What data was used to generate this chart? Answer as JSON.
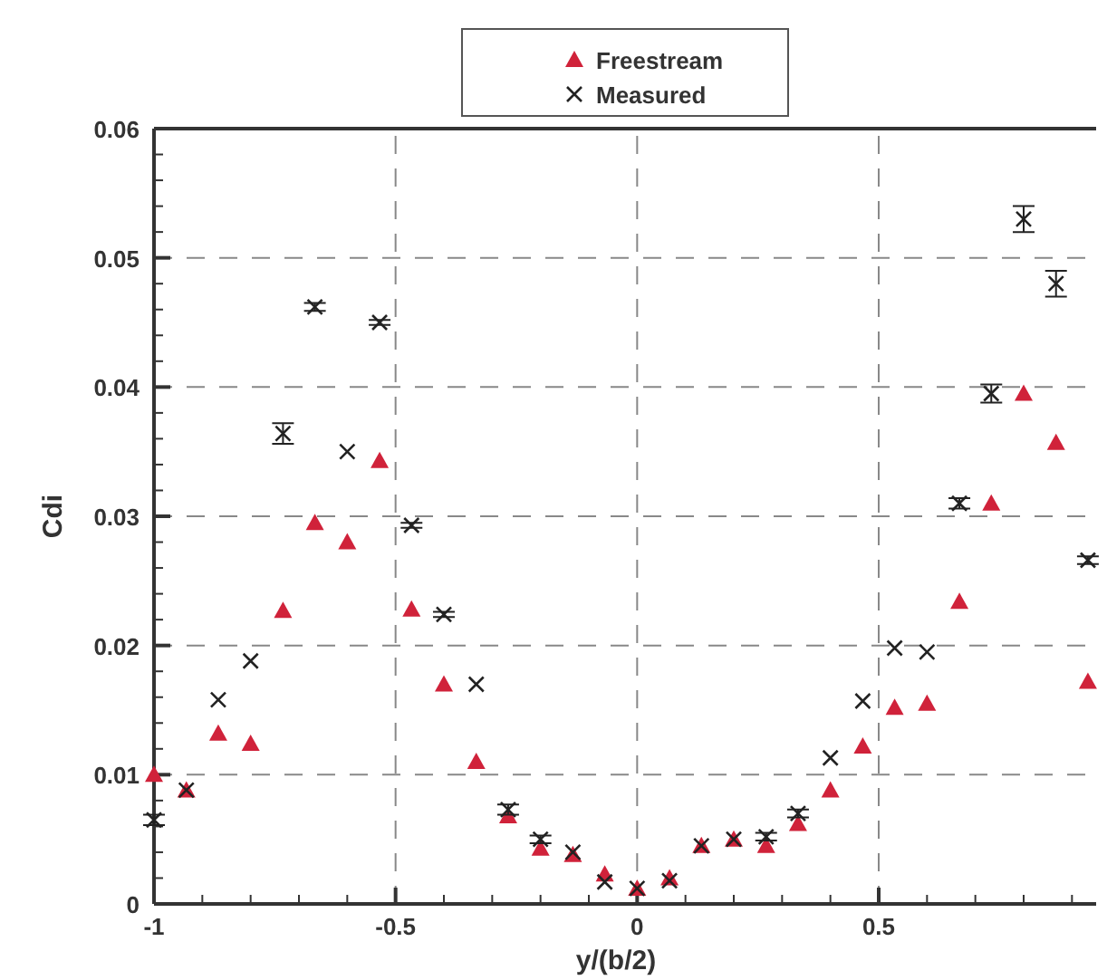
{
  "chart_data": {
    "type": "scatter",
    "xlabel": "y/(b/2)",
    "ylabel": "Cdi",
    "xlim": [
      -1,
      0.95
    ],
    "ylim": [
      0,
      0.06
    ],
    "xticks": [
      -1,
      {
        "value": -0.9,
        "label": null
      },
      {
        "value": -0.8,
        "label": null
      },
      {
        "value": -0.7,
        "label": null
      },
      {
        "value": -0.6,
        "label": null
      },
      -0.5,
      {
        "value": -0.4,
        "label": null
      },
      {
        "value": -0.3,
        "label": null
      },
      {
        "value": -0.2,
        "label": null
      },
      {
        "value": -0.1,
        "label": null
      },
      0,
      {
        "value": 0.1,
        "label": null
      },
      {
        "value": 0.2,
        "label": null
      },
      {
        "value": 0.3,
        "label": null
      },
      {
        "value": 0.4,
        "label": null
      },
      0.5,
      {
        "value": 0.6,
        "label": null
      },
      {
        "value": 0.7,
        "label": null
      },
      {
        "value": 0.8,
        "label": null
      },
      {
        "value": 0.9,
        "label": null
      }
    ],
    "yticks": [
      0,
      {
        "value": 0.002,
        "label": null
      },
      {
        "value": 0.004,
        "label": null
      },
      {
        "value": 0.006,
        "label": null
      },
      {
        "value": 0.008,
        "label": null
      },
      0.01,
      {
        "value": 0.012,
        "label": null
      },
      {
        "value": 0.014,
        "label": null
      },
      {
        "value": 0.016,
        "label": null
      },
      {
        "value": 0.018,
        "label": null
      },
      0.02,
      {
        "value": 0.022,
        "label": null
      },
      {
        "value": 0.024,
        "label": null
      },
      {
        "value": 0.026,
        "label": null
      },
      {
        "value": 0.028,
        "label": null
      },
      0.03,
      {
        "value": 0.032,
        "label": null
      },
      {
        "value": 0.034,
        "label": null
      },
      {
        "value": 0.036,
        "label": null
      },
      {
        "value": 0.038,
        "label": null
      },
      0.04,
      {
        "value": 0.042,
        "label": null
      },
      {
        "value": 0.044,
        "label": null
      },
      {
        "value": 0.046,
        "label": null
      },
      {
        "value": 0.048,
        "label": null
      },
      0.05,
      {
        "value": 0.052,
        "label": null
      },
      {
        "value": 0.054,
        "label": null
      },
      {
        "value": 0.056,
        "label": null
      },
      {
        "value": 0.058,
        "label": null
      },
      0.06
    ],
    "grid": true,
    "legend": "top",
    "line_style": "dashed",
    "x": [
      -1,
      -0.933,
      -0.867,
      -0.8,
      -0.733,
      -0.667,
      -0.6,
      -0.533,
      -0.467,
      -0.4,
      -0.333,
      -0.267,
      -0.2,
      -0.133,
      -0.067,
      0,
      0.067,
      0.133,
      0.2,
      0.267,
      0.333,
      0.4,
      0.467,
      0.533,
      0.6,
      0.667,
      0.733,
      0.8,
      0.867,
      0.933
    ],
    "series": [
      {
        "name": "Freestream",
        "color": "#d0223a",
        "marker": "triangle",
        "values": [
          0.01,
          0.0088,
          0.0132,
          0.0124,
          0.0227,
          0.0295,
          0.028,
          0.0343,
          0.0228,
          0.017,
          0.011,
          0.0068,
          0.0043,
          0.0038,
          0.0023,
          0.0012,
          0.002,
          0.0045,
          0.005,
          0.0045,
          0.0062,
          0.0088,
          0.0122,
          0.0152,
          0.0155,
          0.0234,
          0.031,
          0.0395,
          0.0357,
          0.0172
        ]
      },
      {
        "name": "Measured",
        "color": "#222222",
        "marker": "cross",
        "values": [
          0.0065,
          0.0088,
          0.0158,
          0.0188,
          0.0364,
          0.0462,
          0.035,
          0.045,
          0.0293,
          0.0224,
          0.017,
          0.0073,
          0.005,
          0.004,
          0.0017,
          0.0012,
          0.0018,
          0.0045,
          0.005,
          0.0052,
          0.007,
          0.0113,
          0.0157,
          0.0198,
          0.0195,
          0.031,
          0.0395,
          0.053,
          0.048,
          0.0266
        ],
        "errors": [
          0.0004,
          null,
          null,
          null,
          0.0008,
          0.0003,
          null,
          0.0002,
          0.0002,
          0.0002,
          null,
          0.0004,
          0.0003,
          null,
          null,
          null,
          null,
          null,
          null,
          0.0003,
          0.0003,
          null,
          null,
          null,
          null,
          0.0004,
          0.0007,
          0.001,
          0.001,
          0.0003
        ]
      }
    ]
  }
}
